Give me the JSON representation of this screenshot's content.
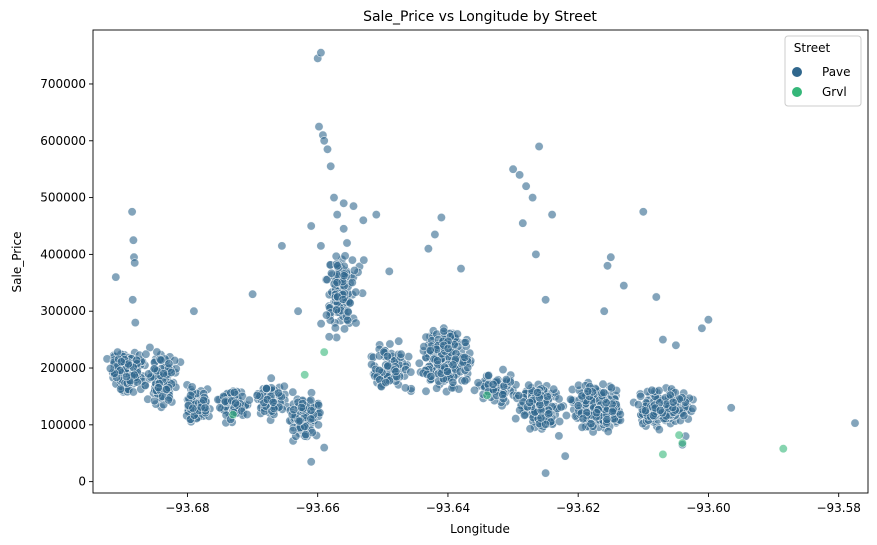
{
  "chart_data": {
    "type": "scatter",
    "title": "Sale_Price vs Longitude by Street",
    "xlabel": "Longitude",
    "ylabel": "Sale_Price",
    "xlim": [
      -93.6945,
      -93.5755
    ],
    "ylim": [
      -20000,
      795000
    ],
    "xticks": [
      -93.68,
      -93.66,
      -93.64,
      -93.62,
      -93.6,
      -93.58
    ],
    "yticks": [
      0,
      100000,
      200000,
      300000,
      400000,
      500000,
      600000,
      700000
    ],
    "grid": false,
    "legend": {
      "title": "Street",
      "placement": "top-right",
      "entries": [
        {
          "name": "Pave",
          "color": "#30678d"
        },
        {
          "name": "Grvl",
          "color": "#35b779"
        }
      ]
    },
    "series": [
      {
        "name": "Pave",
        "color": "#30678d",
        "clusters": [
          {
            "x": [
              -93.6925,
              -93.686
            ],
            "y": [
              150000,
              240000
            ],
            "n": 180
          },
          {
            "x": [
              -93.687,
              -93.681
            ],
            "y": [
              120000,
              240000
            ],
            "n": 110
          },
          {
            "x": [
              -93.681,
              -93.676
            ],
            "y": [
              90000,
              180000
            ],
            "n": 70
          },
          {
            "x": [
              -93.676,
              -93.67
            ],
            "y": [
              100000,
              170000
            ],
            "n": 90
          },
          {
            "x": [
              -93.67,
              -93.664
            ],
            "y": [
              100000,
              190000
            ],
            "n": 70
          },
          {
            "x": [
              -93.665,
              -93.659
            ],
            "y": [
              70000,
              160000
            ],
            "n": 90
          },
          {
            "x": [
              -93.66,
              -93.653
            ],
            "y": [
              250000,
              420000
            ],
            "n": 130
          },
          {
            "x": [
              -93.653,
              -93.645
            ],
            "y": [
              130000,
              260000
            ],
            "n": 90
          },
          {
            "x": [
              -93.645,
              -93.636
            ],
            "y": [
              150000,
              280000
            ],
            "n": 230
          },
          {
            "x": [
              -93.636,
              -93.629
            ],
            "y": [
              130000,
              200000
            ],
            "n": 70
          },
          {
            "x": [
              -93.63,
              -93.622
            ],
            "y": [
              80000,
              180000
            ],
            "n": 190
          },
          {
            "x": [
              -93.622,
              -93.612
            ],
            "y": [
              80000,
              180000
            ],
            "n": 230
          },
          {
            "x": [
              -93.612,
              -93.602
            ],
            "y": [
              90000,
              170000
            ],
            "n": 200
          }
        ],
        "x": [
          -93.6885,
          -93.6883,
          -93.6882,
          -93.6881,
          -93.6884,
          -93.688,
          -93.66,
          -93.6595,
          -93.6598,
          -93.6592,
          -93.659,
          -93.6585,
          -93.658,
          -93.6575,
          -93.657,
          -93.6595,
          -93.656,
          -93.6555,
          -93.6545,
          -93.656,
          -93.651,
          -93.649,
          -93.641,
          -93.642,
          -93.643,
          -93.63,
          -93.629,
          -93.628,
          -93.627,
          -93.6285,
          -93.626,
          -93.6265,
          -93.61,
          -93.608,
          -93.615,
          -93.6155,
          -93.613,
          -93.6,
          -93.601,
          -93.5965,
          -93.5775,
          -93.691,
          -93.679,
          -93.67,
          -93.663,
          -93.6655,
          -93.661,
          -93.653,
          -93.638,
          -93.625,
          -93.624,
          -93.616,
          -93.607,
          -93.605,
          -93.661,
          -93.659,
          -93.6035,
          -93.604,
          -93.625,
          -93.622
        ],
        "y": [
          475000,
          425000,
          395000,
          385000,
          320000,
          280000,
          745000,
          755000,
          625000,
          610000,
          600000,
          585000,
          555000,
          500000,
          470000,
          415000,
          445000,
          420000,
          485000,
          490000,
          470000,
          370000,
          465000,
          435000,
          410000,
          550000,
          540000,
          520000,
          500000,
          455000,
          590000,
          400000,
          475000,
          325000,
          395000,
          380000,
          345000,
          285000,
          270000,
          130000,
          103000,
          360000,
          300000,
          330000,
          300000,
          415000,
          450000,
          460000,
          375000,
          320000,
          470000,
          300000,
          250000,
          240000,
          35000,
          60000,
          80000,
          65000,
          15000,
          45000
        ]
      },
      {
        "name": "Grvl",
        "color": "#35b779",
        "x": [
          -93.673,
          -93.662,
          -93.659,
          -93.634,
          -93.607,
          -93.604,
          -93.6045,
          -93.5885
        ],
        "y": [
          118000,
          188000,
          228000,
          152000,
          48000,
          68000,
          82000,
          58000
        ]
      }
    ]
  }
}
